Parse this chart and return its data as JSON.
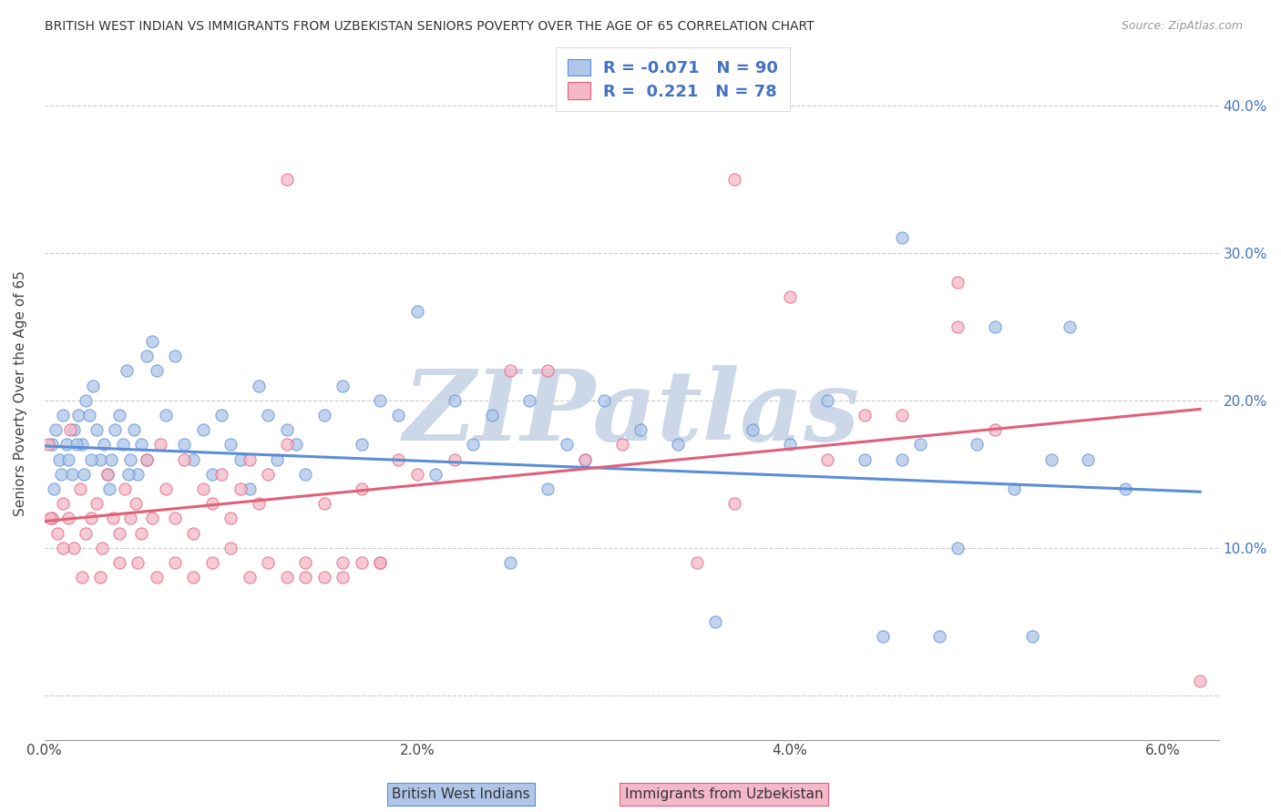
{
  "title": "BRITISH WEST INDIAN VS IMMIGRANTS FROM UZBEKISTAN SENIORS POVERTY OVER THE AGE OF 65 CORRELATION CHART",
  "source": "Source: ZipAtlas.com",
  "ylabel": "Seniors Poverty Over the Age of 65",
  "xlim": [
    0.0,
    0.063
  ],
  "ylim": [
    -0.03,
    0.44
  ],
  "blue_color": "#aec6e8",
  "pink_color": "#f4b8c8",
  "blue_line_color": "#5b8ed6",
  "pink_line_color": "#e0607a",
  "legend_text_color": "#4472c4",
  "r_blue": -0.071,
  "n_blue": 90,
  "r_pink": 0.221,
  "n_pink": 78,
  "watermark": "ZIPatlas",
  "watermark_color": "#ccd8e8",
  "blue_label": "British West Indians",
  "pink_label": "Immigrants from Uzbekistan",
  "blue_trend_x": [
    0.0,
    0.062
  ],
  "blue_trend_y": [
    0.169,
    0.138
  ],
  "pink_trend_x": [
    0.0,
    0.062
  ],
  "pink_trend_y": [
    0.118,
    0.194
  ],
  "blue_x": [
    0.0004,
    0.0006,
    0.0008,
    0.001,
    0.0012,
    0.0015,
    0.0016,
    0.0018,
    0.002,
    0.0022,
    0.0024,
    0.0026,
    0.0028,
    0.003,
    0.0032,
    0.0034,
    0.0036,
    0.0038,
    0.004,
    0.0042,
    0.0044,
    0.0046,
    0.0048,
    0.005,
    0.0052,
    0.0055,
    0.0058,
    0.006,
    0.0065,
    0.007,
    0.0075,
    0.008,
    0.0085,
    0.009,
    0.0095,
    0.01,
    0.0105,
    0.011,
    0.0115,
    0.012,
    0.0125,
    0.013,
    0.0135,
    0.014,
    0.015,
    0.016,
    0.017,
    0.018,
    0.019,
    0.02,
    0.021,
    0.022,
    0.023,
    0.024,
    0.025,
    0.026,
    0.027,
    0.028,
    0.029,
    0.03,
    0.032,
    0.034,
    0.036,
    0.038,
    0.04,
    0.042,
    0.044,
    0.045,
    0.046,
    0.047,
    0.048,
    0.049,
    0.05,
    0.051,
    0.052,
    0.053,
    0.054,
    0.055,
    0.056,
    0.058,
    0.0005,
    0.0009,
    0.0013,
    0.0017,
    0.0021,
    0.0025,
    0.0035,
    0.0045,
    0.0055,
    0.046
  ],
  "blue_y": [
    0.17,
    0.18,
    0.16,
    0.19,
    0.17,
    0.15,
    0.18,
    0.19,
    0.17,
    0.2,
    0.19,
    0.21,
    0.18,
    0.16,
    0.17,
    0.15,
    0.16,
    0.18,
    0.19,
    0.17,
    0.22,
    0.16,
    0.18,
    0.15,
    0.17,
    0.23,
    0.24,
    0.22,
    0.19,
    0.23,
    0.17,
    0.16,
    0.18,
    0.15,
    0.19,
    0.17,
    0.16,
    0.14,
    0.21,
    0.19,
    0.16,
    0.18,
    0.17,
    0.15,
    0.19,
    0.21,
    0.17,
    0.2,
    0.19,
    0.26,
    0.15,
    0.2,
    0.17,
    0.19,
    0.09,
    0.2,
    0.14,
    0.17,
    0.16,
    0.2,
    0.18,
    0.17,
    0.05,
    0.18,
    0.17,
    0.2,
    0.16,
    0.04,
    0.16,
    0.17,
    0.04,
    0.1,
    0.17,
    0.25,
    0.14,
    0.04,
    0.16,
    0.25,
    0.16,
    0.14,
    0.14,
    0.15,
    0.16,
    0.17,
    0.15,
    0.16,
    0.14,
    0.15,
    0.16,
    0.31
  ],
  "pink_x": [
    0.0004,
    0.0007,
    0.001,
    0.0013,
    0.0016,
    0.0019,
    0.0022,
    0.0025,
    0.0028,
    0.0031,
    0.0034,
    0.0037,
    0.004,
    0.0043,
    0.0046,
    0.0049,
    0.0052,
    0.0055,
    0.0058,
    0.0062,
    0.0065,
    0.007,
    0.0075,
    0.008,
    0.0085,
    0.009,
    0.0095,
    0.01,
    0.0105,
    0.011,
    0.0115,
    0.012,
    0.013,
    0.014,
    0.015,
    0.016,
    0.017,
    0.018,
    0.019,
    0.02,
    0.022,
    0.025,
    0.027,
    0.029,
    0.031,
    0.035,
    0.037,
    0.04,
    0.042,
    0.044,
    0.046,
    0.049,
    0.051,
    0.001,
    0.002,
    0.003,
    0.004,
    0.005,
    0.006,
    0.007,
    0.008,
    0.009,
    0.01,
    0.011,
    0.012,
    0.013,
    0.014,
    0.015,
    0.016,
    0.017,
    0.018,
    0.013,
    0.037,
    0.049,
    0.0002,
    0.0014,
    0.0003,
    0.062
  ],
  "pink_y": [
    0.12,
    0.11,
    0.13,
    0.12,
    0.1,
    0.14,
    0.11,
    0.12,
    0.13,
    0.1,
    0.15,
    0.12,
    0.11,
    0.14,
    0.12,
    0.13,
    0.11,
    0.16,
    0.12,
    0.17,
    0.14,
    0.12,
    0.16,
    0.11,
    0.14,
    0.13,
    0.15,
    0.12,
    0.14,
    0.16,
    0.13,
    0.15,
    0.17,
    0.09,
    0.13,
    0.09,
    0.14,
    0.09,
    0.16,
    0.15,
    0.16,
    0.22,
    0.22,
    0.16,
    0.17,
    0.09,
    0.13,
    0.27,
    0.16,
    0.19,
    0.19,
    0.25,
    0.18,
    0.1,
    0.08,
    0.08,
    0.09,
    0.09,
    0.08,
    0.09,
    0.08,
    0.09,
    0.1,
    0.08,
    0.09,
    0.08,
    0.08,
    0.08,
    0.08,
    0.09,
    0.09,
    0.35,
    0.35,
    0.28,
    0.17,
    0.18,
    0.12,
    0.01
  ]
}
